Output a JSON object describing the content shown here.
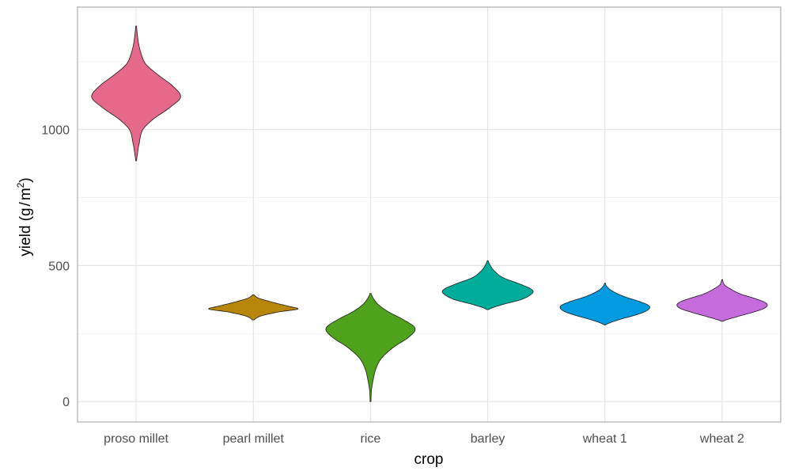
{
  "chart_data": {
    "type": "violin",
    "title": "",
    "xlabel": "crop",
    "ylabel": "yield (g/m²)",
    "ylabel_parts": {
      "main": "yield (g",
      "slash": "/",
      "unit": "m",
      "sup": "2",
      "close": ")"
    },
    "categories": [
      "proso millet",
      "pearl millet",
      "rice",
      "barley",
      "wheat 1",
      "wheat 2"
    ],
    "yticks": [
      "0",
      "500",
      "1000"
    ],
    "ylim": [
      -75,
      1450
    ],
    "grid": true,
    "legend": "none",
    "series": [
      {
        "name": "proso millet",
        "color": "#E7698A",
        "y": [
          885,
          910,
          950,
          1000,
          1040,
          1080,
          1120,
          1160,
          1200,
          1240,
          1280,
          1320,
          1380
        ],
        "density": [
          0.01,
          0.03,
          0.07,
          0.15,
          0.4,
          0.75,
          1.0,
          0.82,
          0.5,
          0.22,
          0.11,
          0.05,
          0.01
        ]
      },
      {
        "name": "pearl millet",
        "color": "#B8860B",
        "y": [
          300,
          315,
          330,
          340,
          350,
          360,
          370,
          380,
          392
        ],
        "density": [
          0.02,
          0.18,
          0.58,
          1.0,
          0.8,
          0.55,
          0.32,
          0.12,
          0.02
        ]
      },
      {
        "name": "rice",
        "color": "#4FA31C",
        "y": [
          0,
          40,
          80,
          120,
          160,
          200,
          240,
          270,
          300,
          330,
          360,
          398
        ],
        "density": [
          0.01,
          0.02,
          0.06,
          0.12,
          0.25,
          0.52,
          0.88,
          1.0,
          0.75,
          0.4,
          0.15,
          0.01
        ]
      },
      {
        "name": "barley",
        "color": "#00AD9A",
        "y": [
          338,
          355,
          375,
          395,
          410,
          430,
          455,
          480,
          500,
          518
        ],
        "density": [
          0.02,
          0.3,
          0.75,
          0.98,
          1.0,
          0.75,
          0.35,
          0.15,
          0.06,
          0.01
        ]
      },
      {
        "name": "wheat 1",
        "color": "#039BE0",
        "y": [
          282,
          300,
          320,
          335,
          350,
          365,
          385,
          405,
          422,
          435
        ],
        "density": [
          0.02,
          0.3,
          0.72,
          0.95,
          1.0,
          0.82,
          0.45,
          0.18,
          0.05,
          0.01
        ]
      },
      {
        "name": "wheat 2",
        "color": "#C66BDB",
        "y": [
          295,
          310,
          330,
          345,
          360,
          375,
          395,
          415,
          430,
          448
        ],
        "density": [
          0.02,
          0.3,
          0.72,
          0.97,
          1.0,
          0.8,
          0.42,
          0.18,
          0.05,
          0.01
        ]
      }
    ]
  }
}
